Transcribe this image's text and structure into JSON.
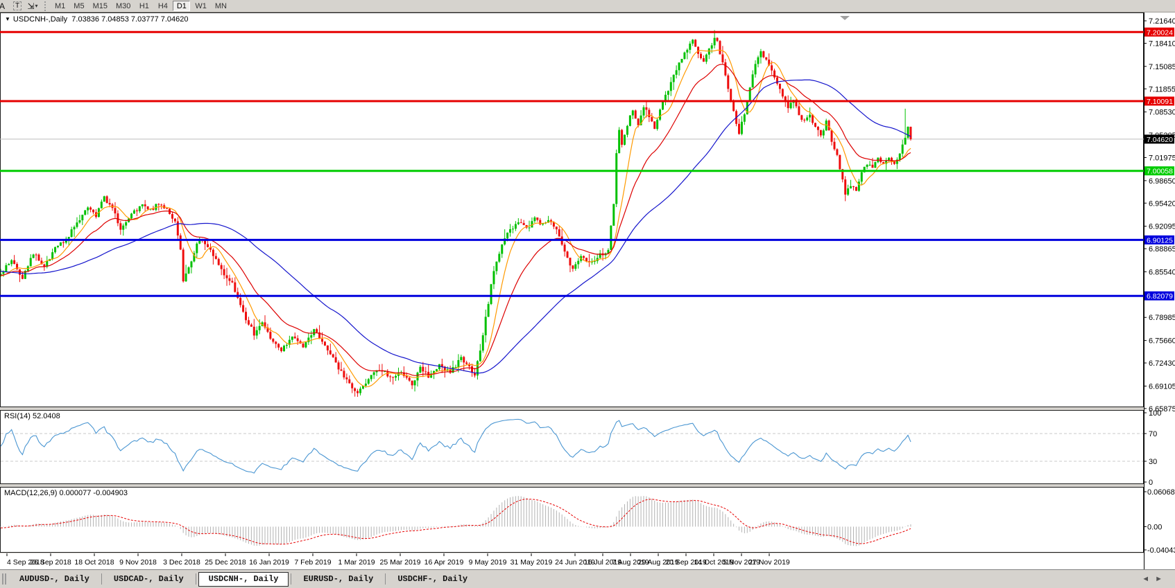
{
  "window": {
    "bg": "#d6d3ce"
  },
  "toolbar": {
    "left_tools": [
      {
        "name": "font-tool",
        "glyph": "A"
      },
      {
        "name": "text-tool",
        "glyph": "T"
      },
      {
        "name": "cursor-tool",
        "glyph": "⇲",
        "caret": "▾"
      }
    ],
    "timeframes": [
      "M1",
      "M5",
      "M15",
      "M30",
      "H1",
      "H4",
      "D1",
      "W1",
      "MN"
    ],
    "active_timeframe": "D1"
  },
  "chart": {
    "dropdown_glyph": "▼",
    "title_symbol": "USDCNH-,Daily",
    "title_ohlc": "7.03836 7.04853 7.03777 7.04620"
  },
  "price_axis": {
    "ticks": [
      "7.21640",
      "7.18410",
      "7.15085",
      "7.11855",
      "7.08530",
      "7.05205",
      "7.01975",
      "6.98650",
      "6.95420",
      "6.92095",
      "6.88865",
      "6.85540",
      "6.78985",
      "6.75660",
      "6.72430",
      "6.69105",
      "6.65875"
    ],
    "labels": [
      {
        "value": 7.20024,
        "text": "7.20024",
        "bg": "#e60000",
        "fg": "#ffffff"
      },
      {
        "value": 7.10091,
        "text": "7.10091",
        "bg": "#e60000",
        "fg": "#ffffff"
      },
      {
        "value": 7.0462,
        "text": "7.04620",
        "bg": "#000000",
        "fg": "#ffffff"
      },
      {
        "value": 7.00058,
        "text": "7.00058",
        "bg": "#00cc00",
        "fg": "#ffffff"
      },
      {
        "value": 6.90125,
        "text": "6.90125",
        "bg": "#0000dd",
        "fg": "#ffffff"
      },
      {
        "value": 6.82079,
        "text": "6.82079",
        "bg": "#0000dd",
        "fg": "#ffffff"
      }
    ]
  },
  "date_axis": {
    "labels": [
      "4 Sep 2018",
      "26 Sep 2018",
      "18 Oct 2018",
      "9 Nov 2018",
      "3 Dec 2018",
      "25 Dec 2018",
      "16 Jan 2019",
      "7 Feb 2019",
      "1 Mar 2019",
      "25 Mar 2019",
      "16 Apr 2019",
      "9 May 2019",
      "31 May 2019",
      "24 Jun 2019",
      "16 Jul 2019",
      "7 Aug 2019",
      "29 Aug 2019",
      "20 Sep 2019",
      "14 Oct 2019",
      "5 Nov 2019",
      "27 Nov 2019"
    ]
  },
  "indicators": {
    "rsi_label": "RSI(14) 52.0408",
    "macd_label": "MACD(12,26,9) 0.000077 -0.004903",
    "rsi_ticks": [
      "100",
      "70",
      "30",
      "0"
    ],
    "macd_ticks": [
      "0.060687",
      "0.00",
      "-0.040432"
    ]
  },
  "tabs": {
    "items": [
      "AUDUSD-, Daily",
      "USDCAD-, Daily",
      "USDCNH-, Daily",
      "EURUSD-, Daily",
      "USDCHF-, Daily"
    ],
    "active_index": 2,
    "scroll_left": "◄",
    "scroll_right": "►"
  },
  "chart_data": [
    {
      "type": "candlestick",
      "symbol": "USDCNH",
      "timeframe": "Daily",
      "ohlc_current": {
        "open": 7.03836,
        "high": 7.04853,
        "low": 7.03777,
        "close": 7.0462
      },
      "current_price": 7.0462,
      "bars_visible": 335,
      "ylim": [
        6.6606,
        7.2284
      ],
      "up_color": "#00c000",
      "down_color": "#ee0d0d",
      "close_anchors": [
        [
          -60,
          6.905
        ],
        [
          -48,
          6.878
        ],
        [
          -36,
          6.842
        ],
        [
          -24,
          6.858
        ],
        [
          -12,
          6.846
        ],
        [
          0,
          6.853
        ],
        [
          4,
          6.872
        ],
        [
          8,
          6.848
        ],
        [
          12,
          6.883
        ],
        [
          16,
          6.862
        ],
        [
          20,
          6.888
        ],
        [
          24,
          6.902
        ],
        [
          28,
          6.925
        ],
        [
          32,
          6.948
        ],
        [
          35,
          6.936
        ],
        [
          38,
          6.962
        ],
        [
          41,
          6.948
        ],
        [
          44,
          6.916
        ],
        [
          48,
          6.938
        ],
        [
          52,
          6.952
        ],
        [
          55,
          6.944
        ],
        [
          58,
          6.954
        ],
        [
          61,
          6.946
        ],
        [
          64,
          6.928
        ],
        [
          66,
          6.888
        ],
        [
          67,
          6.842
        ],
        [
          70,
          6.872
        ],
        [
          73,
          6.904
        ],
        [
          77,
          6.886
        ],
        [
          81,
          6.858
        ],
        [
          85,
          6.838
        ],
        [
          89,
          6.796
        ],
        [
          93,
          6.766
        ],
        [
          96,
          6.784
        ],
        [
          99,
          6.758
        ],
        [
          103,
          6.741
        ],
        [
          107,
          6.764
        ],
        [
          111,
          6.748
        ],
        [
          115,
          6.772
        ],
        [
          119,
          6.751
        ],
        [
          123,
          6.724
        ],
        [
          127,
          6.698
        ],
        [
          131,
          6.679
        ],
        [
          135,
          6.703
        ],
        [
          139,
          6.716
        ],
        [
          143,
          6.703
        ],
        [
          147,
          6.712
        ],
        [
          151,
          6.694
        ],
        [
          154,
          6.716
        ],
        [
          157,
          6.706
        ],
        [
          161,
          6.721
        ],
        [
          165,
          6.711
        ],
        [
          169,
          6.731
        ],
        [
          172,
          6.718
        ],
        [
          174,
          6.708
        ],
        [
          176,
          6.742
        ],
        [
          178,
          6.788
        ],
        [
          181,
          6.858
        ],
        [
          184,
          6.896
        ],
        [
          187,
          6.916
        ],
        [
          190,
          6.927
        ],
        [
          193,
          6.916
        ],
        [
          196,
          6.931
        ],
        [
          199,
          6.923
        ],
        [
          202,
          6.929
        ],
        [
          205,
          6.907
        ],
        [
          208,
          6.877
        ],
        [
          210,
          6.857
        ],
        [
          213,
          6.877
        ],
        [
          216,
          6.867
        ],
        [
          219,
          6.877
        ],
        [
          221,
          6.882
        ],
        [
          223,
          6.886
        ],
        [
          225,
          6.952
        ],
        [
          226,
          7.028
        ],
        [
          227,
          7.058
        ],
        [
          228,
          7.038
        ],
        [
          230,
          7.068
        ],
        [
          232,
          7.088
        ],
        [
          234,
          7.064
        ],
        [
          236,
          7.094
        ],
        [
          238,
          7.078
        ],
        [
          240,
          7.061
        ],
        [
          242,
          7.087
        ],
        [
          244,
          7.108
        ],
        [
          246,
          7.128
        ],
        [
          248,
          7.148
        ],
        [
          250,
          7.162
        ],
        [
          252,
          7.175
        ],
        [
          254,
          7.188
        ],
        [
          256,
          7.17
        ],
        [
          258,
          7.155
        ],
        [
          260,
          7.175
        ],
        [
          262,
          7.19
        ],
        [
          263,
          7.185
        ],
        [
          265,
          7.157
        ],
        [
          267,
          7.117
        ],
        [
          269,
          7.084
        ],
        [
          271,
          7.054
        ],
        [
          273,
          7.084
        ],
        [
          275,
          7.122
        ],
        [
          277,
          7.152
        ],
        [
          279,
          7.171
        ],
        [
          281,
          7.161
        ],
        [
          283,
          7.142
        ],
        [
          285,
          7.124
        ],
        [
          287,
          7.107
        ],
        [
          289,
          7.092
        ],
        [
          291,
          7.102
        ],
        [
          293,
          7.082
        ],
        [
          295,
          7.072
        ],
        [
          297,
          7.082
        ],
        [
          299,
          7.062
        ],
        [
          301,
          7.052
        ],
        [
          303,
          7.071
        ],
        [
          305,
          7.044
        ],
        [
          307,
          7.021
        ],
        [
          309,
          6.987
        ],
        [
          310,
          6.967
        ],
        [
          312,
          6.981
        ],
        [
          314,
          6.971
        ],
        [
          316,
          6.997
        ],
        [
          318,
          7.011
        ],
        [
          320,
          7.007
        ],
        [
          322,
          7.021
        ],
        [
          324,
          7.011
        ],
        [
          326,
          7.017
        ],
        [
          328,
          7.011
        ],
        [
          330,
          7.027
        ],
        [
          332,
          7.051
        ],
        [
          333,
          7.064
        ],
        [
          334,
          7.046
        ]
      ],
      "moving_averages": [
        {
          "name": "fast",
          "period": 8,
          "color": "#ff9a00"
        },
        {
          "name": "medium",
          "period": 21,
          "color": "#dd0000"
        },
        {
          "name": "slow",
          "period": 55,
          "color": "#1414cc"
        }
      ],
      "horizontal_lines": [
        {
          "price": 7.20024,
          "color": "#e60000",
          "width": 3
        },
        {
          "price": 7.10091,
          "color": "#e60000",
          "width": 3
        },
        {
          "price": 7.00058,
          "color": "#00cc00",
          "width": 3
        },
        {
          "price": 6.90125,
          "color": "#0000dd",
          "width": 3
        },
        {
          "price": 6.82079,
          "color": "#0000dd",
          "width": 3
        }
      ],
      "bid_line": {
        "price": 7.0462,
        "color": "#bdbdbd",
        "width": 1
      }
    },
    {
      "type": "line",
      "name": "RSI",
      "params": "14",
      "current": 52.0408,
      "range": [
        0,
        100
      ],
      "levels": [
        70,
        30
      ],
      "color": "#4a96d2"
    },
    {
      "type": "bar+line",
      "name": "MACD",
      "params": "12,26,9",
      "macd_current": 7.7e-05,
      "signal_current": -0.004903,
      "range": [
        -0.040432,
        0.060687
      ],
      "hist_color": "#b2b2b2",
      "signal_color": "#e60000"
    }
  ]
}
